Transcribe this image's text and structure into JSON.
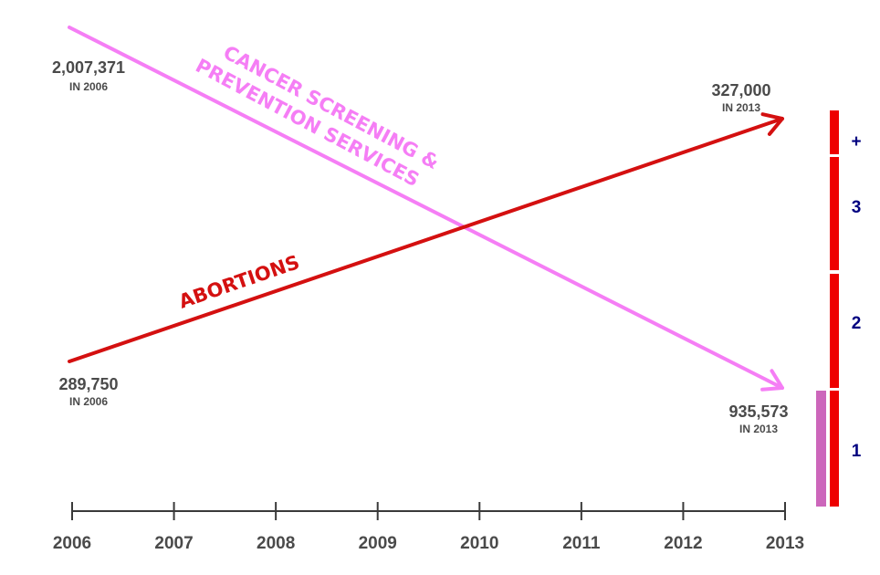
{
  "chart_data": {
    "type": "line",
    "x": [
      2006,
      2013
    ],
    "xticks": [
      "2006",
      "2007",
      "2008",
      "2009",
      "2010",
      "2011",
      "2012",
      "2013"
    ],
    "series": [
      {
        "name": "CANCER SCREENING & PREVENTION SERVICES",
        "name_lines": [
          "CANCER SCREENING &",
          "PREVENTION SERVICES"
        ],
        "values": [
          2007371,
          935573
        ],
        "color": "#f57ef5",
        "start_label": {
          "value": "2,007,371",
          "sub": "IN 2006"
        },
        "end_label": {
          "value": "935,573",
          "sub": "IN 2013"
        }
      },
      {
        "name": "ABORTIONS",
        "values": [
          289750,
          327000
        ],
        "color": "#d41010",
        "start_label": {
          "value": "289,750",
          "sub": "IN 2006"
        },
        "end_label": {
          "value": "327,000",
          "sub": "IN 2013"
        }
      }
    ],
    "side_scale": {
      "labels": [
        "1",
        "2",
        "3",
        "+"
      ],
      "bar_color": "#ee0000",
      "marker_color": "#cc66bb",
      "label_color": "#000080"
    }
  }
}
